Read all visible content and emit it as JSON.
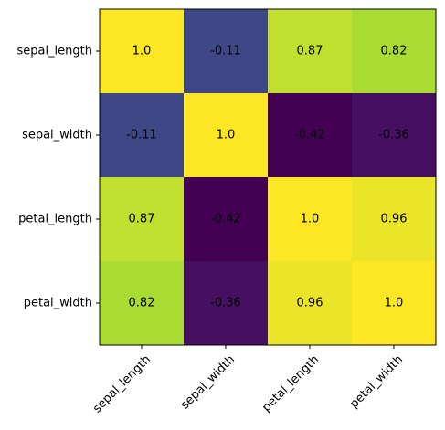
{
  "chart_data": {
    "type": "heatmap",
    "x_categories": [
      "sepal_length",
      "sepal_width",
      "petal_length",
      "petal_width"
    ],
    "y_categories": [
      "sepal_length",
      "sepal_width",
      "petal_length",
      "petal_width"
    ],
    "values": [
      [
        1.0,
        -0.11,
        0.87,
        0.82
      ],
      [
        -0.11,
        1.0,
        -0.42,
        -0.36
      ],
      [
        0.87,
        -0.42,
        1.0,
        0.96
      ],
      [
        0.82,
        -0.36,
        0.96,
        1.0
      ]
    ],
    "value_labels": [
      [
        "1.0",
        "-0.11",
        "0.87",
        "0.82"
      ],
      [
        "-0.11",
        "1.0",
        "-0.42",
        "-0.36"
      ],
      [
        "0.87",
        "-0.42",
        "1.0",
        "0.96"
      ],
      [
        "0.82",
        "-0.36",
        "0.96",
        "1.0"
      ]
    ],
    "colormap": "viridis",
    "vmin": -0.42,
    "vmax": 1.0,
    "colorbar": false,
    "grid": false
  }
}
